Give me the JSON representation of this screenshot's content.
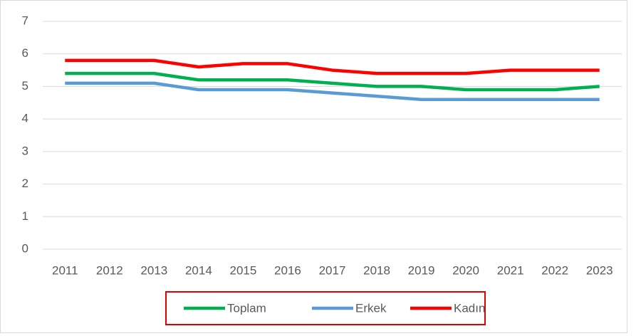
{
  "chart_data": {
    "type": "line",
    "categories": [
      "2011",
      "2012",
      "2013",
      "2014",
      "2015",
      "2016",
      "2017",
      "2018",
      "2019",
      "2020",
      "2021",
      "2022",
      "2023"
    ],
    "series": [
      {
        "name": "Toplam",
        "color": "#00b050",
        "values": [
          5.4,
          5.4,
          5.4,
          5.2,
          5.2,
          5.2,
          5.1,
          5.0,
          5.0,
          4.9,
          4.9,
          4.9,
          5.0
        ]
      },
      {
        "name": "Erkek",
        "color": "#5b9bd5",
        "values": [
          5.1,
          5.1,
          5.1,
          4.9,
          4.9,
          4.9,
          4.8,
          4.7,
          4.6,
          4.6,
          4.6,
          4.6,
          4.6
        ]
      },
      {
        "name": "Kadın",
        "color": "#ff0000",
        "values": [
          5.8,
          5.8,
          5.8,
          5.6,
          5.7,
          5.7,
          5.5,
          5.4,
          5.4,
          5.4,
          5.5,
          5.5,
          5.5
        ]
      }
    ],
    "ylim": [
      0,
      7
    ],
    "yticks": [
      0,
      1,
      2,
      3,
      4,
      5,
      6,
      7
    ],
    "grid": true,
    "legend": "bottom"
  }
}
